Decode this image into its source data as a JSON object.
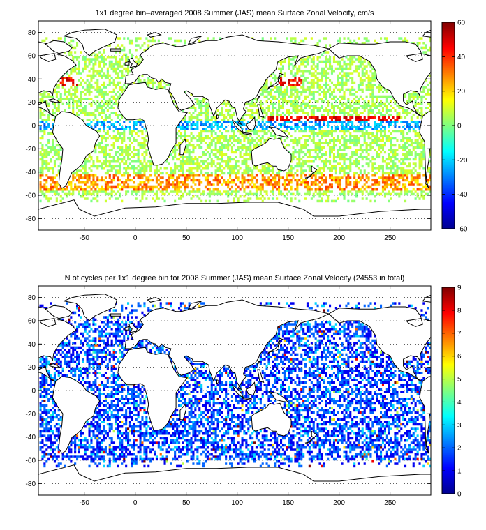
{
  "figure": {
    "background": "#ffffff"
  },
  "chart_data": [
    {
      "type": "heatmap",
      "title": "1x1 degree bin–averaged 2008 Summer (JAS) mean Surface Zonal Velocity, cm/s",
      "xlabel": "",
      "ylabel": "",
      "xlim": [
        -95,
        290
      ],
      "ylim": [
        -90,
        90
      ],
      "xticks": [
        -50,
        0,
        50,
        100,
        150,
        200,
        250
      ],
      "xtick_labels": [
        "-50",
        "0",
        "50",
        "100",
        "150",
        "200",
        "250"
      ],
      "yticks": [
        80,
        60,
        40,
        20,
        0,
        -20,
        -40,
        -60,
        -80
      ],
      "ytick_labels": [
        "80",
        "60",
        "40",
        "20",
        "0",
        "-20",
        "-40",
        "-60",
        "-80"
      ],
      "grid": true,
      "colormap": "jet",
      "clim": [
        -60,
        60
      ],
      "colorbar_ticks": [
        60,
        40,
        20,
        0,
        -20,
        -40,
        -60
      ],
      "colorbar_labels": [
        "60",
        "40",
        "20",
        "0",
        "-20",
        "-40",
        "-60"
      ],
      "field": "surface zonal velocity (cm/s), 1x1 degree bins, scattered ocean coverage; strong eastward (red) jets near 40N Kuroshio/Gulf Stream and along the equatorial countercurrent near 5N, westward (blue) flow along the equator"
    },
    {
      "type": "heatmap",
      "title": "N of cycles per 1x1 degree bin for 2008 Summer (JAS) mean Surface Zonal Velocity (24553 in total)",
      "xlabel": "",
      "ylabel": "",
      "xlim": [
        -95,
        290
      ],
      "ylim": [
        -90,
        90
      ],
      "xticks": [
        -50,
        0,
        50,
        100,
        150,
        200,
        250
      ],
      "xtick_labels": [
        "-50",
        "0",
        "50",
        "100",
        "150",
        "200",
        "250"
      ],
      "yticks": [
        80,
        60,
        40,
        20,
        0,
        -20,
        -40,
        -60,
        -80
      ],
      "ytick_labels": [
        "80",
        "60",
        "40",
        "20",
        "0",
        "-20",
        "-40",
        "-60",
        "-80"
      ],
      "grid": true,
      "colormap": "jet",
      "clim": [
        0,
        9
      ],
      "colorbar_ticks": [
        9,
        8,
        7,
        6,
        5,
        4,
        3,
        2,
        1,
        0
      ],
      "colorbar_labels": [
        "9",
        "8",
        "7",
        "6",
        "5",
        "4",
        "3",
        "2",
        "1",
        "0"
      ],
      "field": "number of float cycles per 1x1 degree bin; mostly 1-2 (blue) across the oceans, with scattered higher counts (up to 9) in marginal seas"
    }
  ]
}
